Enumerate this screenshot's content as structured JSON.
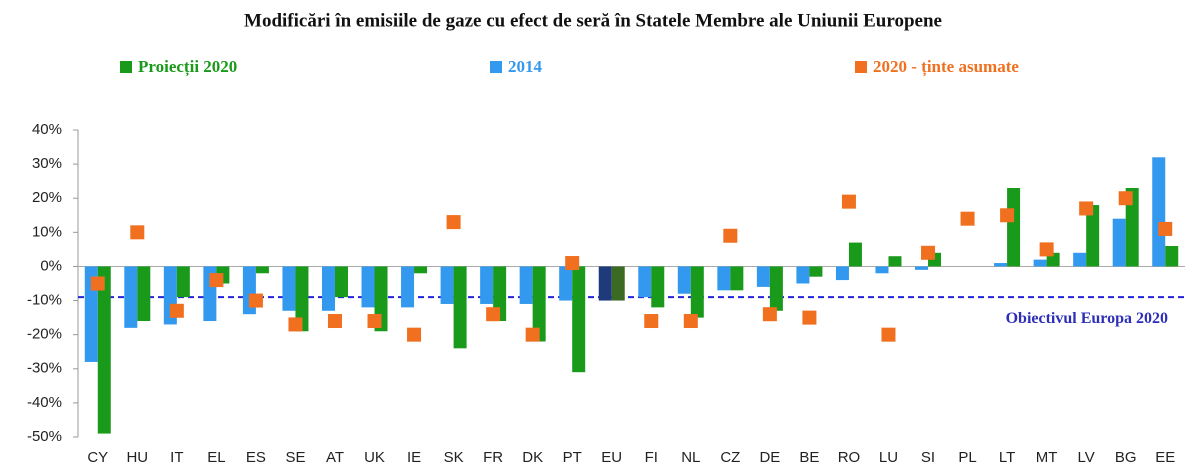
{
  "chart_data": {
    "type": "bar",
    "title": "Modificări în emisiile de gaze cu efect de seră în Statele Membre ale Uniunii Europene",
    "categories": [
      "CY",
      "HU",
      "IT",
      "EL",
      "ES",
      "SE",
      "AT",
      "UK",
      "IE",
      "SK",
      "FR",
      "DK",
      "PT",
      "EU",
      "FI",
      "NL",
      "CZ",
      "DE",
      "BE",
      "RO",
      "LU",
      "SI",
      "PL",
      "LT",
      "MT",
      "LV",
      "BG",
      "EE"
    ],
    "series": [
      {
        "name": "2014",
        "color": "#3399ee",
        "colors": [
          "#3399ee",
          "#3399ee",
          "#3399ee",
          "#3399ee",
          "#3399ee",
          "#3399ee",
          "#3399ee",
          "#3399ee",
          "#3399ee",
          "#3399ee",
          "#3399ee",
          "#3399ee",
          "#3399ee",
          "#1f3a7a",
          "#3399ee",
          "#3399ee",
          "#3399ee",
          "#3399ee",
          "#3399ee",
          "#3399ee",
          "#3399ee",
          "#3399ee",
          "#3399ee",
          "#3399ee",
          "#3399ee",
          "#3399ee",
          "#3399ee",
          "#3399ee"
        ],
        "values": [
          -28,
          -18,
          -17,
          -16,
          -14,
          -13,
          -13,
          -12,
          -12,
          -11,
          -11,
          -11,
          -10,
          -10,
          -9,
          -8,
          -7,
          -6,
          -5,
          -4,
          -2,
          -1,
          0,
          1,
          2,
          4,
          14,
          32
        ]
      },
      {
        "name": "Proiecții 2020",
        "color": "#1a9a1a",
        "colors": [
          "#1a9a1a",
          "#1a9a1a",
          "#1a9a1a",
          "#1a9a1a",
          "#1a9a1a",
          "#1a9a1a",
          "#1a9a1a",
          "#1a9a1a",
          "#1a9a1a",
          "#1a9a1a",
          "#1a9a1a",
          "#1a9a1a",
          "#1a9a1a",
          "#3b6b22",
          "#1a9a1a",
          "#1a9a1a",
          "#1a9a1a",
          "#1a9a1a",
          "#1a9a1a",
          "#1a9a1a",
          "#1a9a1a",
          "#1a9a1a",
          "#1a9a1a",
          "#1a9a1a",
          "#1a9a1a",
          "#1a9a1a",
          "#1a9a1a",
          "#1a9a1a"
        ],
        "values": [
          -49,
          -16,
          -9,
          -5,
          -2,
          -19,
          -9,
          -19,
          -2,
          -24,
          -16,
          -22,
          -31,
          -10,
          -12,
          -15,
          -7,
          -13,
          -3,
          7,
          3,
          4,
          0,
          23,
          4,
          18,
          23,
          6
        ]
      },
      {
        "name": "2020 - ținte asumate",
        "color": "#f07020",
        "marker": "square",
        "values": [
          -5,
          10,
          -13,
          -4,
          -10,
          -17,
          -16,
          -16,
          -20,
          13,
          -14,
          -20,
          1,
          null,
          -16,
          -16,
          9,
          -14,
          -15,
          19,
          -20,
          4,
          14,
          15,
          5,
          17,
          20,
          11
        ]
      }
    ],
    "ylim": [
      -50,
      40
    ],
    "yticks": [
      {
        "value": -50,
        "label": "-50%"
      },
      {
        "value": -40,
        "label": "-40%"
      },
      {
        "value": -30,
        "label": "-30%"
      },
      {
        "value": -20,
        "label": "-20%"
      },
      {
        "value": -10,
        "label": "-10%"
      },
      {
        "value": 0,
        "label": "0%"
      },
      {
        "value": 10,
        "label": "10%"
      },
      {
        "value": 20,
        "label": "20%"
      },
      {
        "value": 30,
        "label": "30%"
      },
      {
        "value": 40,
        "label": "40%"
      }
    ],
    "reference_line": {
      "value": -9,
      "label": "Obiectivul Europa 2020",
      "color": "#2222dd"
    },
    "grid": false
  }
}
